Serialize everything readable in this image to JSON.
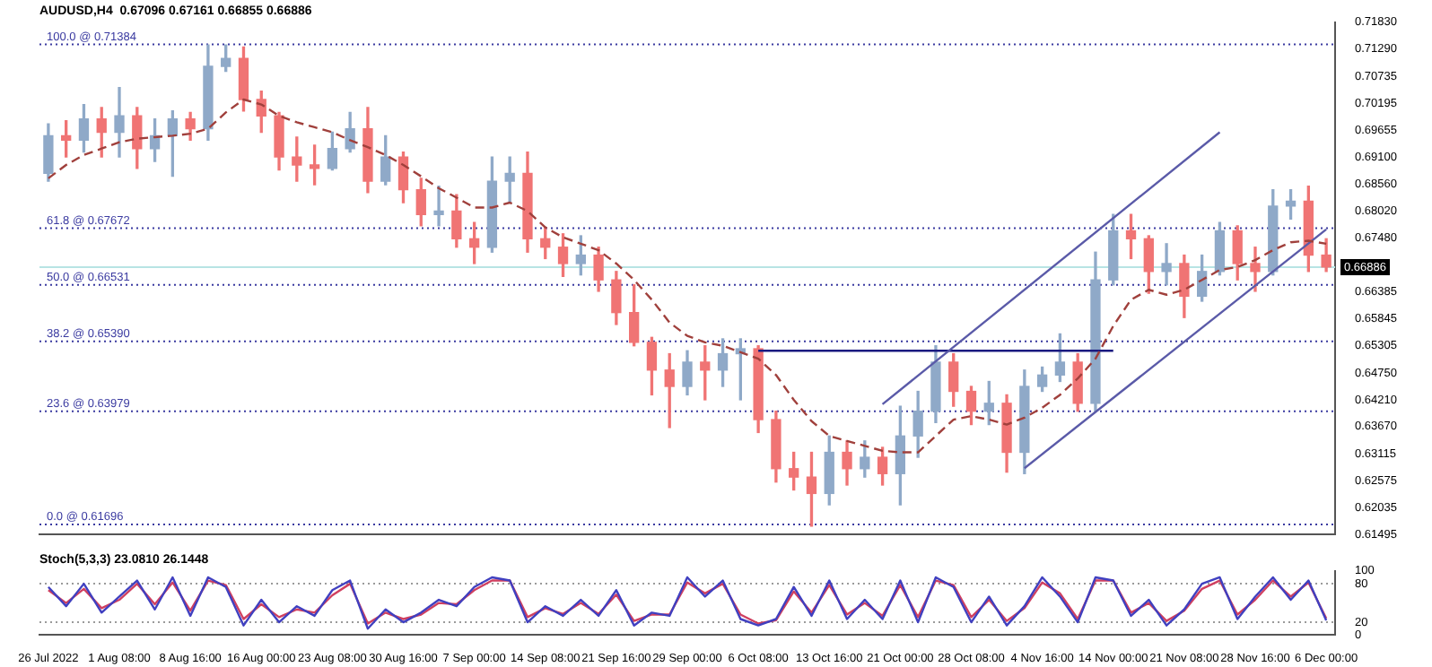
{
  "chart_data": [
    {
      "type": "candlestick",
      "title": "AUDUSD,H4  0.67096 0.67161 0.66855 0.66886",
      "tick_labels": "y",
      "grid": false,
      "marker": "none",
      "categories": [
        null,
        null,
        null,
        null,
        null,
        null,
        null,
        null,
        null,
        null,
        null,
        null,
        null,
        null,
        null,
        null,
        null,
        null,
        null,
        null,
        null,
        null,
        null,
        null,
        null,
        null,
        null,
        null,
        null,
        null,
        null,
        null,
        null,
        null,
        null,
        null,
        null,
        null,
        null,
        null,
        null,
        null,
        null,
        null,
        null,
        null,
        null,
        null,
        null,
        null,
        null,
        null,
        null,
        null,
        null,
        null,
        null,
        null,
        null,
        null,
        null,
        null,
        null,
        null,
        null,
        null,
        null,
        null,
        null,
        null,
        null,
        null,
        null
      ],
      "ylim": [
        0.61495,
        0.7183
      ],
      "yticks": [
        {
          "value": 0.7183,
          "label": "0.71830"
        },
        {
          "value": 0.7129,
          "label": "0.71290"
        },
        {
          "value": 0.70735,
          "label": "0.70735"
        },
        {
          "value": 0.70195,
          "label": "0.70195"
        },
        {
          "value": 0.69655,
          "label": "0.69655"
        },
        {
          "value": 0.691,
          "label": "0.69100"
        },
        {
          "value": 0.6856,
          "label": "0.68560"
        },
        {
          "value": 0.6802,
          "label": "0.68020"
        },
        {
          "value": 0.6748,
          "label": "0.67480"
        },
        {
          "value": 0.66385,
          "label": "0.66385"
        },
        {
          "value": 0.65845,
          "label": "0.65845"
        },
        {
          "value": 0.65305,
          "label": "0.65305"
        },
        {
          "value": 0.6475,
          "label": "0.64750"
        },
        {
          "value": 0.6421,
          "label": "0.64210"
        },
        {
          "value": 0.6367,
          "label": "0.63670"
        },
        {
          "value": 0.63115,
          "label": "0.63115"
        },
        {
          "value": 0.62575,
          "label": "0.62575"
        },
        {
          "value": 0.62035,
          "label": "0.62035"
        },
        {
          "value": 0.61495,
          "label": "0.61495"
        }
      ],
      "ref_lines": [
        {
          "axis": "y",
          "value": 0.71384,
          "label": "100.0 @ 0.71384",
          "color": "#3a3aa0",
          "line_style": "dotted"
        },
        {
          "axis": "y",
          "value": 0.67672,
          "label": "61.8 @ 0.67672",
          "color": "#3a3aa0",
          "line_style": "dotted"
        },
        {
          "axis": "y",
          "value": 0.66531,
          "label": "50.0 @ 0.66531",
          "color": "#3a3aa0",
          "line_style": "dotted"
        },
        {
          "axis": "y",
          "value": 0.6539,
          "label": "38.2 @ 0.65390",
          "color": "#3a3aa0",
          "line_style": "dotted"
        },
        {
          "axis": "y",
          "value": 0.63979,
          "label": "23.6 @ 0.63979",
          "color": "#3a3aa0",
          "line_style": "dotted"
        },
        {
          "axis": "y",
          "value": 0.61696,
          "label": "0.0 @ 0.61696",
          "color": "#3a3aa0",
          "line_style": "dotted"
        },
        {
          "axis": "y",
          "value": 0.66886,
          "label": "0.66886",
          "color": "#b8e4e4",
          "line_style": "solid"
        }
      ],
      "series": [
        {
          "colors": [
            "#8fa9c8",
            "#f07474",
            "#8fa9c8",
            "#f07474",
            "#8fa9c8",
            "#f07474",
            "#8fa9c8",
            "#8fa9c8",
            "#f07474",
            "#8fa9c8",
            "#8fa9c8",
            "#f07474",
            "#f07474",
            "#f07474",
            "#f07474",
            "#f07474",
            "#8fa9c8",
            "#8fa9c8",
            "#f07474",
            "#8fa9c8",
            "#f07474",
            "#f07474",
            "#8fa9c8",
            "#f07474",
            "#f07474",
            "#8fa9c8",
            "#8fa9c8",
            "#f07474",
            "#f07474",
            "#f07474",
            "#8fa9c8",
            "#f07474",
            "#f07474",
            "#f07474",
            "#f07474",
            "#f07474",
            "#8fa9c8",
            "#f07474",
            "#8fa9c8",
            "#8fa9c8",
            "#f07474",
            "#f07474",
            "#f07474",
            "#f07474",
            "#8fa9c8",
            "#f07474",
            "#8fa9c8",
            "#f07474",
            "#8fa9c8",
            "#8fa9c8",
            "#8fa9c8",
            "#f07474",
            "#f07474",
            "#8fa9c8",
            "#f07474",
            "#8fa9c8",
            "#8fa9c8",
            "#8fa9c8",
            "#f07474",
            "#8fa9c8",
            "#8fa9c8",
            "#f07474",
            "#f07474",
            "#8fa9c8",
            "#f07474",
            "#8fa9c8",
            "#8fa9c8",
            "#f07474",
            "#f07474",
            "#8fa9c8",
            "#8fa9c8",
            "#f07474",
            "#f07474"
          ],
          "ohlc": [
            [
              0.6878,
              0.6978,
              0.6862,
              0.6954
            ],
            [
              0.6954,
              0.6984,
              0.6911,
              0.6945
            ],
            [
              0.6945,
              0.7017,
              0.6921,
              0.6988
            ],
            [
              0.6988,
              0.7011,
              0.6911,
              0.6961
            ],
            [
              0.6961,
              0.7051,
              0.6911,
              0.6994
            ],
            [
              0.6994,
              0.7011,
              0.6888,
              0.6928
            ],
            [
              0.6928,
              0.6988,
              0.6902,
              0.6954
            ],
            [
              0.6954,
              0.7004,
              0.6872,
              0.6988
            ],
            [
              0.6988,
              0.7001,
              0.6945,
              0.6968
            ],
            [
              0.6968,
              0.7137,
              0.6945,
              0.7094
            ],
            [
              0.7094,
              0.7137,
              0.7084,
              0.711
            ],
            [
              0.711,
              0.7133,
              0.7004,
              0.7027
            ],
            [
              0.7027,
              0.7044,
              0.6961,
              0.6994
            ],
            [
              0.6994,
              0.7001,
              0.6885,
              0.6911
            ],
            [
              0.6911,
              0.6951,
              0.6862,
              0.6895
            ],
            [
              0.6895,
              0.6935,
              0.6855,
              0.6888
            ],
            [
              0.6888,
              0.6961,
              0.6885,
              0.6928
            ],
            [
              0.6928,
              0.7001,
              0.6921,
              0.6968
            ],
            [
              0.6968,
              0.7011,
              0.6839,
              0.6862
            ],
            [
              0.6862,
              0.6954,
              0.6855,
              0.6911
            ],
            [
              0.6911,
              0.6921,
              0.6819,
              0.6845
            ],
            [
              0.6845,
              0.6868,
              0.6772,
              0.6795
            ],
            [
              0.6795,
              0.6852,
              0.6772,
              0.6802
            ],
            [
              0.6802,
              0.6835,
              0.6729,
              0.6746
            ],
            [
              0.6746,
              0.6779,
              0.6696,
              0.6729
            ],
            [
              0.6729,
              0.6911,
              0.6719,
              0.6862
            ],
            [
              0.6862,
              0.6911,
              0.6819,
              0.6878
            ],
            [
              0.6878,
              0.6921,
              0.6719,
              0.6746
            ],
            [
              0.6746,
              0.6769,
              0.6706,
              0.6729
            ],
            [
              0.6729,
              0.6756,
              0.667,
              0.6696
            ],
            [
              0.6696,
              0.6752,
              0.6673,
              0.6713
            ],
            [
              0.6713,
              0.6729,
              0.664,
              0.6663
            ],
            [
              0.6663,
              0.668,
              0.6573,
              0.6597
            ],
            [
              0.6597,
              0.6653,
              0.653,
              0.6537
            ],
            [
              0.6537,
              0.6547,
              0.6431,
              0.6481
            ],
            [
              0.6481,
              0.6514,
              0.6365,
              0.6448
            ],
            [
              0.6448,
              0.652,
              0.6431,
              0.6497
            ],
            [
              0.6497,
              0.653,
              0.6421,
              0.6481
            ],
            [
              0.6481,
              0.6544,
              0.6448,
              0.6514
            ],
            [
              0.6514,
              0.6544,
              0.6421,
              0.6524
            ],
            [
              0.6524,
              0.653,
              0.6355,
              0.6381
            ],
            [
              0.6381,
              0.6398,
              0.6255,
              0.6282
            ],
            [
              0.6282,
              0.6315,
              0.6239,
              0.6265
            ],
            [
              0.6265,
              0.6315,
              0.6166,
              0.6232
            ],
            [
              0.6232,
              0.6348,
              0.6209,
              0.6315
            ],
            [
              0.6315,
              0.6338,
              0.6249,
              0.6282
            ],
            [
              0.6282,
              0.6338,
              0.6265,
              0.6305
            ],
            [
              0.6305,
              0.6325,
              0.6249,
              0.6272
            ],
            [
              0.6272,
              0.6408,
              0.6209,
              0.6348
            ],
            [
              0.6348,
              0.6438,
              0.6305,
              0.6398
            ],
            [
              0.6398,
              0.653,
              0.6375,
              0.6497
            ],
            [
              0.6497,
              0.6514,
              0.6408,
              0.6438
            ],
            [
              0.6438,
              0.6448,
              0.6371,
              0.6398
            ],
            [
              0.6398,
              0.6458,
              0.6371,
              0.6414
            ],
            [
              0.6414,
              0.6431,
              0.6275,
              0.6315
            ],
            [
              0.6315,
              0.6481,
              0.6272,
              0.6448
            ],
            [
              0.6448,
              0.6487,
              0.6438,
              0.6471
            ],
            [
              0.6471,
              0.6554,
              0.6458,
              0.6497
            ],
            [
              0.6497,
              0.6514,
              0.6398,
              0.6414
            ],
            [
              0.6414,
              0.6719,
              0.6398,
              0.6663
            ],
            [
              0.6663,
              0.6795,
              0.6653,
              0.6762
            ],
            [
              0.6762,
              0.6795,
              0.6706,
              0.6746
            ],
            [
              0.6746,
              0.6752,
              0.6636,
              0.668
            ],
            [
              0.668,
              0.6736,
              0.6653,
              0.6696
            ],
            [
              0.6696,
              0.6713,
              0.6587,
              0.663
            ],
            [
              0.663,
              0.6713,
              0.662,
              0.668
            ],
            [
              0.668,
              0.6779,
              0.6673,
              0.6762
            ],
            [
              0.6762,
              0.6772,
              0.6663,
              0.6696
            ],
            [
              0.6696,
              0.6729,
              0.664,
              0.668
            ],
            [
              0.668,
              0.6845,
              0.6673,
              0.6812
            ],
            [
              0.6812,
              0.6845,
              0.6786,
              0.6822
            ],
            [
              0.6822,
              0.6852,
              0.668,
              0.6713
            ],
            [
              0.6713,
              0.6746,
              0.668,
              0.6689
            ]
          ]
        },
        {
          "type": "line",
          "color": "#a0403c",
          "line_style": "dashed",
          "values": [
            0.6868,
            0.6895,
            0.6915,
            0.6928,
            0.6941,
            0.6948,
            0.6951,
            0.6954,
            0.6958,
            0.6968,
            0.7001,
            0.7027,
            0.7017,
            0.6994,
            0.6981,
            0.6971,
            0.6961,
            0.6945,
            0.6931,
            0.6915,
            0.6895,
            0.6872,
            0.6848,
            0.6829,
            0.6809,
            0.6809,
            0.6819,
            0.6802,
            0.6769,
            0.6749,
            0.6736,
            0.6723,
            0.6696,
            0.6663,
            0.6623,
            0.6577,
            0.655,
            0.6537,
            0.653,
            0.6517,
            0.6504,
            0.6471,
            0.6421,
            0.6378,
            0.6348,
            0.6338,
            0.6328,
            0.6318,
            0.6315,
            0.6315,
            0.6348,
            0.6381,
            0.6388,
            0.6381,
            0.6371,
            0.6385,
            0.6405,
            0.6431,
            0.6464,
            0.6504,
            0.657,
            0.6623,
            0.6643,
            0.6633,
            0.6643,
            0.6663,
            0.6683,
            0.6689,
            0.6703,
            0.6723,
            0.6739,
            0.6742,
            0.6736
          ]
        },
        {
          "type": "line",
          "color": "#5a5aa8",
          "line_style": "solid",
          "values": [
            null,
            null,
            null,
            null,
            null,
            null,
            null,
            null,
            null,
            null,
            null,
            null,
            null,
            null,
            null,
            null,
            null,
            null,
            null,
            null,
            null,
            null,
            null,
            null,
            null,
            null,
            null,
            null,
            null,
            null,
            null,
            null,
            null,
            null,
            null,
            null,
            null,
            null,
            null,
            null,
            null,
            null,
            null,
            null,
            null,
            null,
            null,
            0.6412,
            null,
            null,
            null,
            null,
            null,
            null,
            null,
            null,
            null,
            null,
            null,
            null,
            null,
            null,
            null,
            null,
            null,
            null,
            0.6961,
            null,
            null,
            null,
            null,
            null,
            null
          ]
        },
        {
          "type": "line",
          "color": "#5a5aa8",
          "line_style": "solid",
          "values": [
            null,
            null,
            null,
            null,
            null,
            null,
            null,
            null,
            null,
            null,
            null,
            null,
            null,
            null,
            null,
            null,
            null,
            null,
            null,
            null,
            null,
            null,
            null,
            null,
            null,
            null,
            null,
            null,
            null,
            null,
            null,
            null,
            null,
            null,
            null,
            null,
            null,
            null,
            null,
            null,
            null,
            null,
            null,
            null,
            null,
            null,
            null,
            null,
            null,
            null,
            null,
            null,
            null,
            null,
            null,
            0.6283,
            null,
            null,
            null,
            null,
            null,
            null,
            null,
            null,
            null,
            null,
            null,
            null,
            null,
            null,
            null,
            null,
            0.6765
          ]
        },
        {
          "type": "line",
          "color": "#1a1a80",
          "line_style": "solid",
          "values": [
            null,
            null,
            null,
            null,
            null,
            null,
            null,
            null,
            null,
            null,
            null,
            null,
            null,
            null,
            null,
            null,
            null,
            null,
            null,
            null,
            null,
            null,
            null,
            null,
            null,
            null,
            null,
            null,
            null,
            null,
            null,
            null,
            null,
            null,
            null,
            null,
            null,
            null,
            null,
            null,
            0.652,
            null,
            null,
            null,
            null,
            null,
            null,
            null,
            null,
            null,
            null,
            null,
            null,
            null,
            null,
            null,
            null,
            null,
            null,
            null,
            0.652,
            null,
            null,
            null,
            null,
            null,
            null,
            null,
            null,
            null,
            null,
            null,
            null
          ]
        }
      ]
    },
    {
      "type": "line",
      "title": "Stoch(5,3,3) 23.0810 26.1448",
      "grid": false,
      "marker": "none",
      "categories": [
        "26 Jul 2022",
        null,
        null,
        null,
        "1 Aug 08:00",
        null,
        null,
        null,
        "8 Aug 16:00",
        null,
        null,
        null,
        "16 Aug 00:00",
        null,
        null,
        null,
        "23 Aug 08:00",
        null,
        null,
        null,
        "30 Aug 16:00",
        null,
        null,
        null,
        "7 Sep 00:00",
        null,
        null,
        null,
        "14 Sep 08:00",
        null,
        null,
        null,
        "21 Sep 16:00",
        null,
        null,
        null,
        "29 Sep 00:00",
        null,
        null,
        null,
        "6 Oct 08:00",
        null,
        null,
        null,
        "13 Oct 16:00",
        null,
        null,
        null,
        "21 Oct 00:00",
        null,
        null,
        null,
        "28 Oct 08:00",
        null,
        null,
        null,
        "4 Nov 16:00",
        null,
        null,
        null,
        "14 Nov 00:00",
        null,
        null,
        null,
        "21 Nov 08:00",
        null,
        null,
        null,
        "28 Nov 16:00",
        null,
        null,
        null,
        "6 Dec 00:00"
      ],
      "ylim": [
        0,
        100
      ],
      "yticks": [
        0,
        20,
        80,
        100
      ],
      "ref_lines": [
        {
          "axis": "y",
          "value": 80,
          "color": "#9a9a9a",
          "line_style": "dotted"
        },
        {
          "axis": "y",
          "value": 20,
          "color": "#9a9a9a",
          "line_style": "dotted"
        }
      ],
      "series": [
        {
          "color": "#4040c0",
          "line_style": "solid",
          "values": [
            75,
            45,
            80,
            35,
            60,
            85,
            40,
            90,
            30,
            90,
            75,
            15,
            55,
            20,
            45,
            30,
            70,
            85,
            10,
            40,
            20,
            35,
            55,
            45,
            75,
            90,
            85,
            20,
            45,
            30,
            55,
            30,
            70,
            15,
            35,
            30,
            90,
            60,
            85,
            25,
            15,
            25,
            75,
            30,
            85,
            25,
            55,
            25,
            85,
            20,
            90,
            75,
            20,
            60,
            15,
            45,
            90,
            60,
            20,
            90,
            85,
            30,
            55,
            15,
            40,
            80,
            90,
            25,
            60,
            90,
            55,
            85,
            23
          ]
        },
        {
          "color": "#d04060",
          "line_style": "solid",
          "values": [
            70,
            50,
            72,
            42,
            55,
            80,
            48,
            82,
            38,
            85,
            78,
            25,
            48,
            28,
            40,
            35,
            62,
            80,
            18,
            35,
            25,
            32,
            50,
            48,
            70,
            85,
            85,
            28,
            42,
            33,
            50,
            33,
            63,
            22,
            32,
            32,
            82,
            65,
            80,
            32,
            18,
            23,
            68,
            35,
            78,
            32,
            50,
            30,
            78,
            28,
            85,
            78,
            28,
            55,
            22,
            42,
            82,
            65,
            25,
            85,
            85,
            35,
            50,
            22,
            38,
            72,
            85,
            32,
            55,
            85,
            60,
            82,
            26
          ]
        }
      ]
    }
  ]
}
